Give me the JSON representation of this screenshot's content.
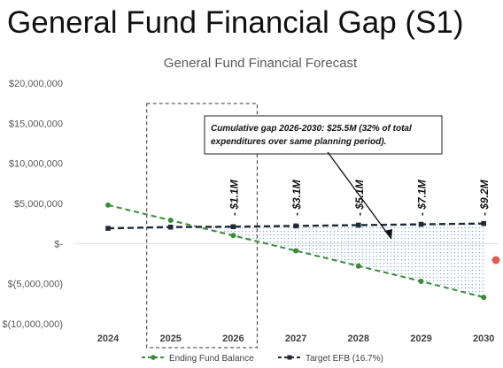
{
  "slide": {
    "title": "General Fund Financial Gap (S1)"
  },
  "chart_data": {
    "type": "line",
    "title": "General Fund Financial Forecast",
    "x": [
      "2024",
      "2025",
      "2026",
      "2027",
      "2028",
      "2029",
      "2030"
    ],
    "y_ticks": [
      20000000,
      15000000,
      10000000,
      5000000,
      0,
      -5000000,
      -10000000
    ],
    "y_tick_labels": [
      "$20,000,000",
      "$15,000,000",
      "$10,000,000",
      "$5,000,000",
      "$-",
      "$(5,000,000)",
      "$(10,000,000)"
    ],
    "ylim": [
      -10000000,
      20000000
    ],
    "series": [
      {
        "name": "Ending Fund Balance",
        "color": "#3a8a3a",
        "dash": "dashed",
        "marker": "circle",
        "values": [
          4800000,
          2900000,
          1000000,
          -900000,
          -2800000,
          -4700000,
          -6700000
        ]
      },
      {
        "name": "Target EFB (16.7%)",
        "color": "#1f2b3a",
        "dash": "dashed",
        "marker": "square",
        "values": [
          1900000,
          2050000,
          2100000,
          2200000,
          2300000,
          2400000,
          2500000
        ]
      }
    ],
    "gap_labels": [
      {
        "x": "2026",
        "label": "- $1.1M"
      },
      {
        "x": "2027",
        "label": "- $3.1M"
      },
      {
        "x": "2028",
        "label": "- $5.1M"
      },
      {
        "x": "2029",
        "label": "- $7.1M"
      },
      {
        "x": "2030",
        "label": "- $9.2M"
      }
    ],
    "annotation": {
      "line1": "Cumulative gap 2026-2030: $25.5M (32% of total",
      "line2": "expenditures over same planning period)."
    },
    "highlight_years": [
      "2025",
      "2026"
    ],
    "legend_position": "bottom",
    "grid": false,
    "hatch_color": "#8fb3d9"
  }
}
